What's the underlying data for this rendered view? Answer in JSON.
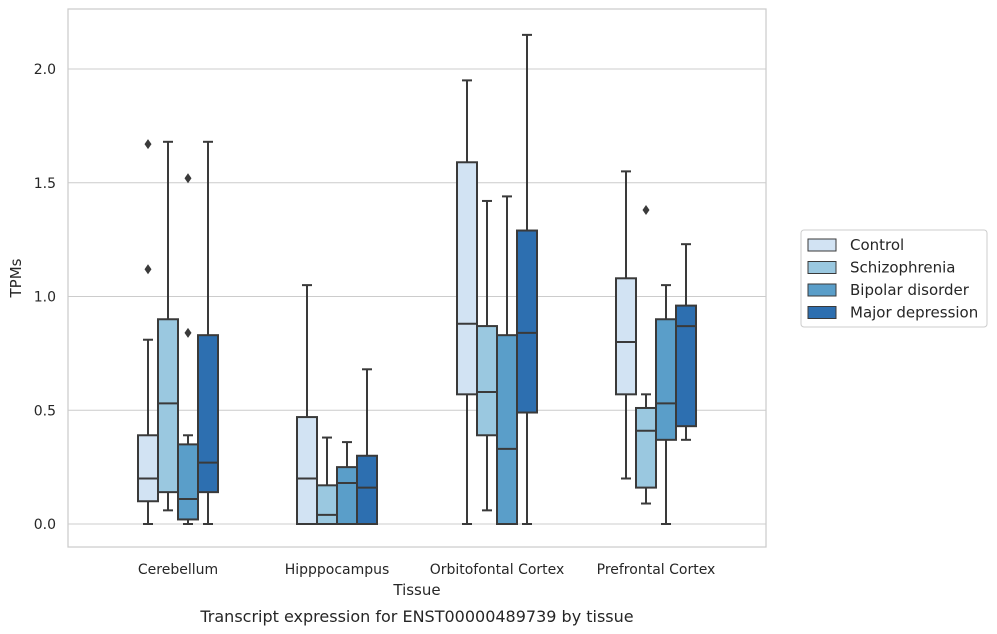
{
  "chart_data": {
    "type": "box",
    "title": "",
    "caption": "Transcript expression for ENST00000489739 by tissue",
    "xlabel": "Tissue",
    "ylabel": "TPMs",
    "ylim": [
      -0.11,
      2.27
    ],
    "yticks": [
      0.0,
      0.5,
      1.0,
      1.5,
      2.0
    ],
    "ytick_labels": [
      "0.0",
      "0.5",
      "1.0",
      "1.5",
      "2.0"
    ],
    "grid": "horizontal",
    "legend_position": "center-right",
    "categories": [
      "Cerebellum",
      "Hipppocampus",
      "Orbitofontal Cortex",
      "Prefrontal Cortex"
    ],
    "series": [
      {
        "name": "Control",
        "color": "#d2e3f3",
        "boxes": [
          {
            "whislo": 0.0,
            "q1": 0.1,
            "med": 0.2,
            "q3": 0.39,
            "whishi": 0.81,
            "fliers": [
              1.12,
              1.67
            ]
          },
          {
            "whislo": 0.0,
            "q1": 0.0,
            "med": 0.2,
            "q3": 0.47,
            "whishi": 1.05,
            "fliers": []
          },
          {
            "whislo": 0.0,
            "q1": 0.57,
            "med": 0.88,
            "q3": 1.59,
            "whishi": 1.95,
            "fliers": []
          },
          {
            "whislo": 0.2,
            "q1": 0.57,
            "med": 0.8,
            "q3": 1.08,
            "whishi": 1.55,
            "fliers": []
          }
        ]
      },
      {
        "name": "Schizophrenia",
        "color": "#9ac8e0",
        "boxes": [
          {
            "whislo": 0.06,
            "q1": 0.14,
            "med": 0.53,
            "q3": 0.9,
            "whishi": 1.68,
            "fliers": []
          },
          {
            "whislo": 0.0,
            "q1": 0.0,
            "med": 0.04,
            "q3": 0.17,
            "whishi": 0.38,
            "fliers": []
          },
          {
            "whislo": 0.06,
            "q1": 0.39,
            "med": 0.58,
            "q3": 0.87,
            "whishi": 1.42,
            "fliers": []
          },
          {
            "whislo": 0.09,
            "q1": 0.16,
            "med": 0.41,
            "q3": 0.51,
            "whishi": 0.57,
            "fliers": [
              1.38
            ]
          }
        ]
      },
      {
        "name": "Bipolar disorder",
        "color": "#5a9ec9",
        "boxes": [
          {
            "whislo": 0.0,
            "q1": 0.02,
            "med": 0.11,
            "q3": 0.35,
            "whishi": 0.39,
            "fliers": [
              0.84,
              1.52
            ]
          },
          {
            "whislo": 0.0,
            "q1": 0.0,
            "med": 0.18,
            "q3": 0.25,
            "whishi": 0.36,
            "fliers": []
          },
          {
            "whislo": 0.0,
            "q1": 0.0,
            "med": 0.33,
            "q3": 0.83,
            "whishi": 1.44,
            "fliers": []
          },
          {
            "whislo": 0.0,
            "q1": 0.37,
            "med": 0.53,
            "q3": 0.9,
            "whishi": 1.05,
            "fliers": []
          }
        ]
      },
      {
        "name": "Major depression",
        "color": "#2d6fb0",
        "boxes": [
          {
            "whislo": 0.0,
            "q1": 0.14,
            "med": 0.27,
            "q3": 0.83,
            "whishi": 1.68,
            "fliers": []
          },
          {
            "whislo": 0.0,
            "q1": 0.0,
            "med": 0.16,
            "q3": 0.3,
            "whishi": 0.68,
            "fliers": []
          },
          {
            "whislo": 0.0,
            "q1": 0.49,
            "med": 0.84,
            "q3": 1.29,
            "whishi": 2.15,
            "fliers": []
          },
          {
            "whislo": 0.37,
            "q1": 0.43,
            "med": 0.87,
            "q3": 0.96,
            "whishi": 1.23,
            "fliers": []
          }
        ]
      }
    ]
  }
}
